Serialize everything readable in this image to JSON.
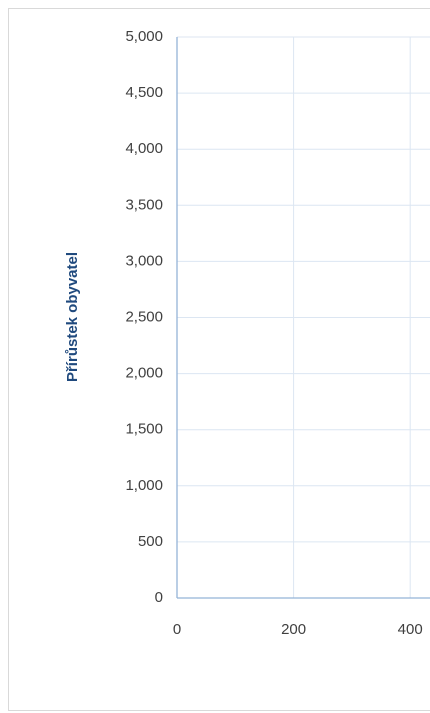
{
  "chart_data": {
    "type": "scatter",
    "y_axis_label": "Přírůstek obyvatel",
    "xlim": [
      0,
      434
    ],
    "xticks": [
      0,
      200,
      400
    ],
    "ylim": [
      0,
      5000
    ],
    "yticks": [
      0,
      500,
      {
        "value": 1000,
        "label": "1,000"
      },
      {
        "value": 1500,
        "label": "1,500"
      },
      {
        "value": 2000,
        "label": "2,000"
      },
      {
        "value": 2500,
        "label": "2,500"
      },
      {
        "value": 3000,
        "label": "3,000"
      },
      {
        "value": 3500,
        "label": "3,500"
      },
      {
        "value": 4000,
        "label": "4,000"
      },
      {
        "value": 4500,
        "label": "4,500"
      },
      {
        "value": 5000,
        "label": "5,000"
      }
    ],
    "grid": true
  }
}
